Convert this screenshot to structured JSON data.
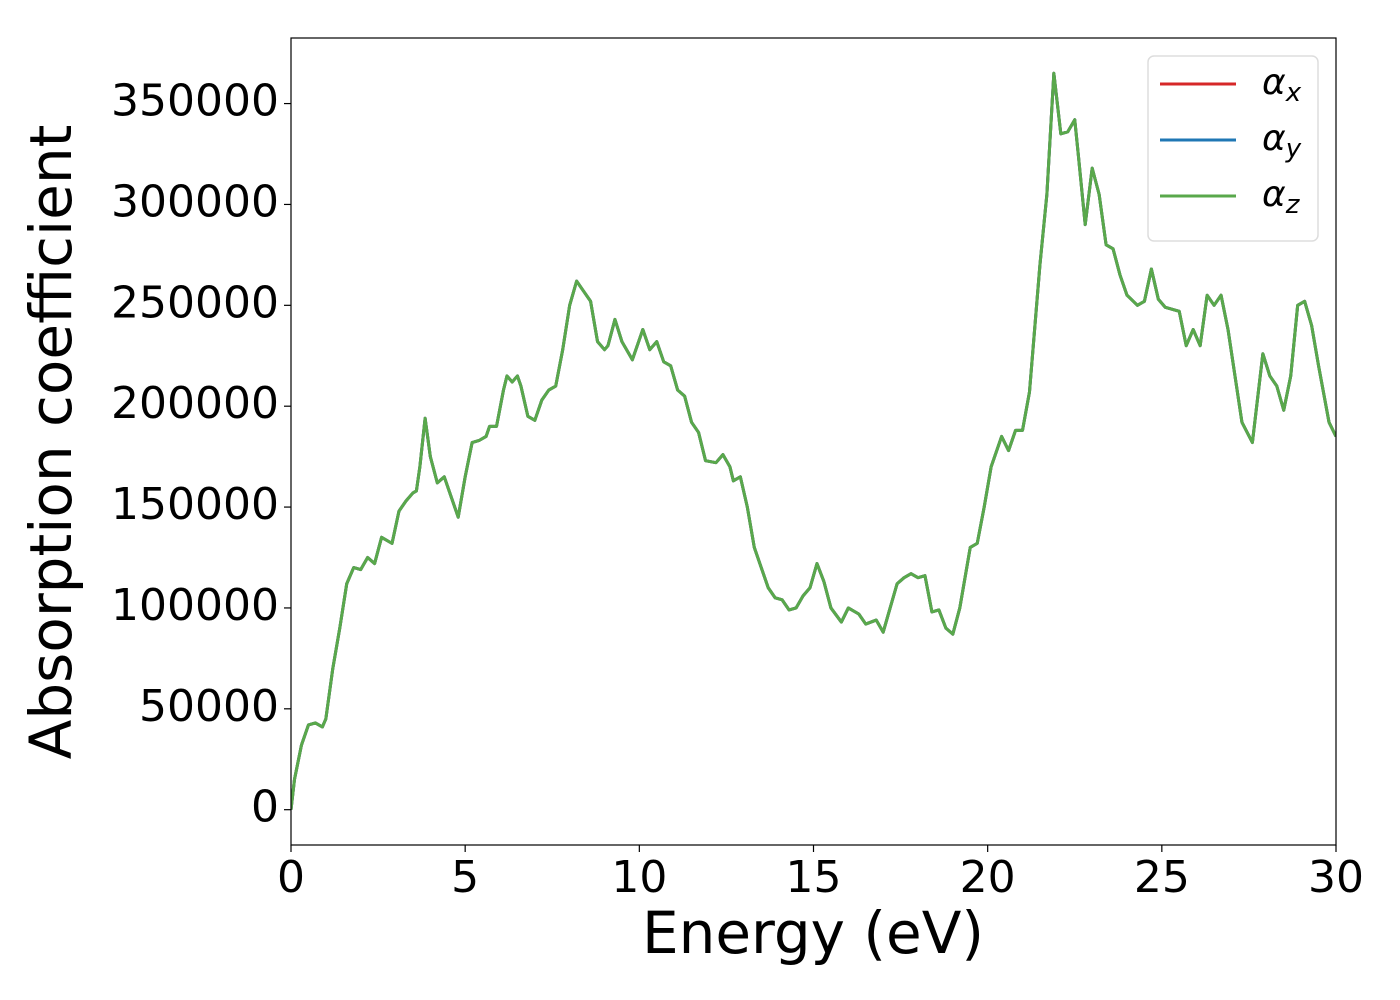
{
  "chart_data": {
    "type": "line",
    "xlabel": "Energy (eV)",
    "ylabel": "Absorption coefficient",
    "xlim": [
      0,
      30
    ],
    "xticks": [
      0,
      5,
      10,
      15,
      20,
      25,
      30
    ],
    "ylim": [
      -17500,
      382500
    ],
    "yticks": [
      0,
      50000,
      100000,
      150000,
      200000,
      250000,
      300000,
      350000
    ],
    "grid": false,
    "legend": "upper right",
    "x": [
      0,
      0.1,
      0.3,
      0.5,
      0.7,
      0.9,
      1.0,
      1.2,
      1.4,
      1.6,
      1.8,
      2.0,
      2.2,
      2.4,
      2.6,
      2.8,
      2.9,
      3.1,
      3.3,
      3.5,
      3.6,
      3.7,
      3.85,
      4.0,
      4.2,
      4.4,
      4.6,
      4.8,
      5.0,
      5.2,
      5.4,
      5.6,
      5.7,
      5.9,
      6.1,
      6.2,
      6.35,
      6.5,
      6.6,
      6.8,
      7.0,
      7.2,
      7.4,
      7.6,
      7.8,
      8.0,
      8.2,
      8.4,
      8.6,
      8.8,
      9.0,
      9.1,
      9.3,
      9.5,
      9.8,
      10.1,
      10.3,
      10.5,
      10.7,
      10.9,
      11.1,
      11.3,
      11.5,
      11.7,
      11.9,
      12.2,
      12.4,
      12.6,
      12.7,
      12.9,
      13.1,
      13.3,
      13.5,
      13.7,
      13.9,
      14.1,
      14.3,
      14.5,
      14.7,
      14.9,
      15.1,
      15.3,
      15.5,
      15.8,
      16.0,
      16.3,
      16.5,
      16.8,
      17.0,
      17.2,
      17.4,
      17.6,
      17.8,
      18.0,
      18.2,
      18.4,
      18.6,
      18.8,
      19.0,
      19.2,
      19.5,
      19.7,
      19.9,
      20.1,
      20.4,
      20.6,
      20.8,
      21.0,
      21.2,
      21.5,
      21.7,
      21.9,
      22.1,
      22.3,
      22.5,
      22.6,
      22.8,
      23.0,
      23.2,
      23.4,
      23.6,
      23.8,
      24.0,
      24.3,
      24.5,
      24.7,
      24.9,
      25.1,
      25.3,
      25.5,
      25.7,
      25.9,
      26.1,
      26.3,
      26.5,
      26.7,
      26.9,
      27.1,
      27.3,
      27.6,
      27.9,
      28.1,
      28.3,
      28.5,
      28.7,
      28.9,
      29.1,
      29.3,
      29.5,
      29.8,
      30
    ],
    "series": [
      {
        "name": "αx",
        "color": "#d62728",
        "values": [
          0,
          15000,
          32000,
          42000,
          43000,
          41000,
          45000,
          70000,
          90000,
          112000,
          120000,
          119000,
          125000,
          122000,
          135000,
          133000,
          132000,
          148000,
          153000,
          157000,
          158000,
          170000,
          194000,
          175000,
          162000,
          165000,
          155000,
          145000,
          165000,
          182000,
          183000,
          185000,
          190000,
          190000,
          208000,
          215000,
          212000,
          215000,
          210000,
          195000,
          193000,
          203000,
          208000,
          210000,
          228000,
          250000,
          262000,
          257000,
          252000,
          232000,
          228000,
          230000,
          243000,
          232000,
          223000,
          238000,
          228000,
          232000,
          222000,
          220000,
          208000,
          205000,
          192000,
          187000,
          173000,
          172000,
          176000,
          170000,
          163000,
          165000,
          150000,
          130000,
          120000,
          110000,
          105000,
          104000,
          99000,
          100000,
          106000,
          110000,
          122000,
          113000,
          100000,
          93000,
          100000,
          97000,
          92000,
          94000,
          88000,
          100000,
          112000,
          115000,
          117000,
          115000,
          116000,
          98000,
          99000,
          90000,
          87000,
          100000,
          130000,
          132000,
          150000,
          170000,
          185000,
          178000,
          188000,
          188000,
          207000,
          270000,
          305000,
          365000,
          335000,
          336000,
          342000,
          325000,
          290000,
          318000,
          305000,
          280000,
          278000,
          265000,
          255000,
          250000,
          252000,
          268000,
          253000,
          249000,
          248000,
          247000,
          230000,
          238000,
          230000,
          255000,
          250000,
          255000,
          238000,
          215000,
          192000,
          182000,
          226000,
          215000,
          210000,
          198000,
          215000,
          250000,
          252000,
          240000,
          220000,
          192000,
          185000
        ]
      },
      {
        "name": "αy",
        "color": "#1f77b4",
        "values": [
          0,
          15000,
          32000,
          42000,
          43000,
          41000,
          45000,
          70000,
          90000,
          112000,
          120000,
          119000,
          125000,
          122000,
          135000,
          133000,
          132000,
          148000,
          153000,
          157000,
          158000,
          170000,
          194000,
          175000,
          162000,
          165000,
          155000,
          145000,
          165000,
          182000,
          183000,
          185000,
          190000,
          190000,
          208000,
          215000,
          212000,
          215000,
          210000,
          195000,
          193000,
          203000,
          208000,
          210000,
          228000,
          250000,
          262000,
          257000,
          252000,
          232000,
          228000,
          230000,
          243000,
          232000,
          223000,
          238000,
          228000,
          232000,
          222000,
          220000,
          208000,
          205000,
          192000,
          187000,
          173000,
          172000,
          176000,
          170000,
          163000,
          165000,
          150000,
          130000,
          120000,
          110000,
          105000,
          104000,
          99000,
          100000,
          106000,
          110000,
          122000,
          113000,
          100000,
          93000,
          100000,
          97000,
          92000,
          94000,
          88000,
          100000,
          112000,
          115000,
          117000,
          115000,
          116000,
          98000,
          99000,
          90000,
          87000,
          100000,
          130000,
          132000,
          150000,
          170000,
          185000,
          178000,
          188000,
          188000,
          207000,
          270000,
          305000,
          365000,
          335000,
          336000,
          342000,
          325000,
          290000,
          318000,
          305000,
          280000,
          278000,
          265000,
          255000,
          250000,
          252000,
          268000,
          253000,
          249000,
          248000,
          247000,
          230000,
          238000,
          230000,
          255000,
          250000,
          255000,
          238000,
          215000,
          192000,
          182000,
          226000,
          215000,
          210000,
          198000,
          215000,
          250000,
          252000,
          240000,
          220000,
          192000,
          185000
        ]
      },
      {
        "name": "αz",
        "color": "#59a84b",
        "values": [
          0,
          15000,
          32000,
          42000,
          43000,
          41000,
          45000,
          70000,
          90000,
          112000,
          120000,
          119000,
          125000,
          122000,
          135000,
          133000,
          132000,
          148000,
          153000,
          157000,
          158000,
          170000,
          194000,
          175000,
          162000,
          165000,
          155000,
          145000,
          165000,
          182000,
          183000,
          185000,
          190000,
          190000,
          208000,
          215000,
          212000,
          215000,
          210000,
          195000,
          193000,
          203000,
          208000,
          210000,
          228000,
          250000,
          262000,
          257000,
          252000,
          232000,
          228000,
          230000,
          243000,
          232000,
          223000,
          238000,
          228000,
          232000,
          222000,
          220000,
          208000,
          205000,
          192000,
          187000,
          173000,
          172000,
          176000,
          170000,
          163000,
          165000,
          150000,
          130000,
          120000,
          110000,
          105000,
          104000,
          99000,
          100000,
          106000,
          110000,
          122000,
          113000,
          100000,
          93000,
          100000,
          97000,
          92000,
          94000,
          88000,
          100000,
          112000,
          115000,
          117000,
          115000,
          116000,
          98000,
          99000,
          90000,
          87000,
          100000,
          130000,
          132000,
          150000,
          170000,
          185000,
          178000,
          188000,
          188000,
          207000,
          270000,
          305000,
          365000,
          335000,
          336000,
          342000,
          325000,
          290000,
          318000,
          305000,
          280000,
          278000,
          265000,
          255000,
          250000,
          252000,
          268000,
          253000,
          249000,
          248000,
          247000,
          230000,
          238000,
          230000,
          255000,
          250000,
          255000,
          238000,
          215000,
          192000,
          182000,
          226000,
          215000,
          210000,
          198000,
          215000,
          250000,
          252000,
          240000,
          220000,
          192000,
          185000
        ]
      }
    ]
  }
}
